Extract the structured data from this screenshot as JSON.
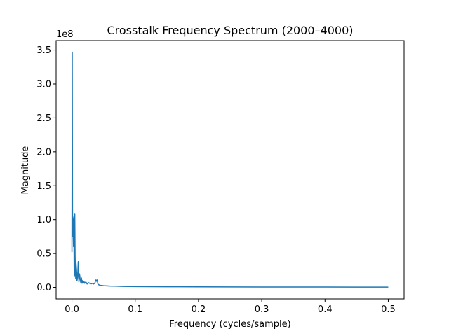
{
  "chart_data": {
    "type": "line",
    "title": "Crosstalk Frequency Spectrum (2000–4000)",
    "xlabel": "Frequency (cycles/sample)",
    "ylabel": "Magnitude",
    "y_offset_label": "1e8",
    "xlim": [
      -0.025,
      0.525
    ],
    "ylim": [
      -0.17,
      3.64
    ],
    "x_ticks": [
      0.0,
      0.1,
      0.2,
      0.3,
      0.4,
      0.5
    ],
    "x_tick_labels": [
      "0.0",
      "0.1",
      "0.2",
      "0.3",
      "0.4",
      "0.5"
    ],
    "y_ticks": [
      0.0,
      0.5,
      1.0,
      1.5,
      2.0,
      2.5,
      3.0,
      3.5
    ],
    "y_tick_labels": [
      "0.0",
      "0.5",
      "1.0",
      "1.5",
      "2.0",
      "2.5",
      "3.0",
      "3.5"
    ],
    "grid": false,
    "line_color": "#1f77b4",
    "series": [
      {
        "x": [
          0.0,
          0.0005,
          0.001,
          0.0015,
          0.002,
          0.0025,
          0.003,
          0.0035,
          0.004,
          0.0045,
          0.005,
          0.0055,
          0.006,
          0.0065,
          0.007,
          0.0075,
          0.008,
          0.009,
          0.01,
          0.011,
          0.012,
          0.013,
          0.014,
          0.015,
          0.016,
          0.017,
          0.018,
          0.019,
          0.02,
          0.022,
          0.024,
          0.026,
          0.028,
          0.03,
          0.032,
          0.034,
          0.036,
          0.038,
          0.039,
          0.04,
          0.041,
          0.042,
          0.045,
          0.05,
          0.06,
          0.07,
          0.08,
          0.1,
          0.15,
          0.2,
          0.3,
          0.4,
          0.5
        ],
        "y": [
          0.52,
          3.47,
          0.75,
          1.04,
          0.85,
          0.6,
          1.02,
          0.3,
          0.16,
          1.09,
          0.48,
          0.22,
          0.13,
          0.35,
          0.28,
          0.22,
          0.1,
          0.15,
          0.38,
          0.08,
          0.2,
          0.12,
          0.07,
          0.14,
          0.06,
          0.1,
          0.07,
          0.09,
          0.06,
          0.08,
          0.05,
          0.07,
          0.06,
          0.05,
          0.06,
          0.05,
          0.06,
          0.11,
          0.09,
          0.11,
          0.05,
          0.04,
          0.03,
          0.025,
          0.02,
          0.018,
          0.015,
          0.012,
          0.01,
          0.008,
          0.006,
          0.005,
          0.004
        ]
      }
    ]
  }
}
